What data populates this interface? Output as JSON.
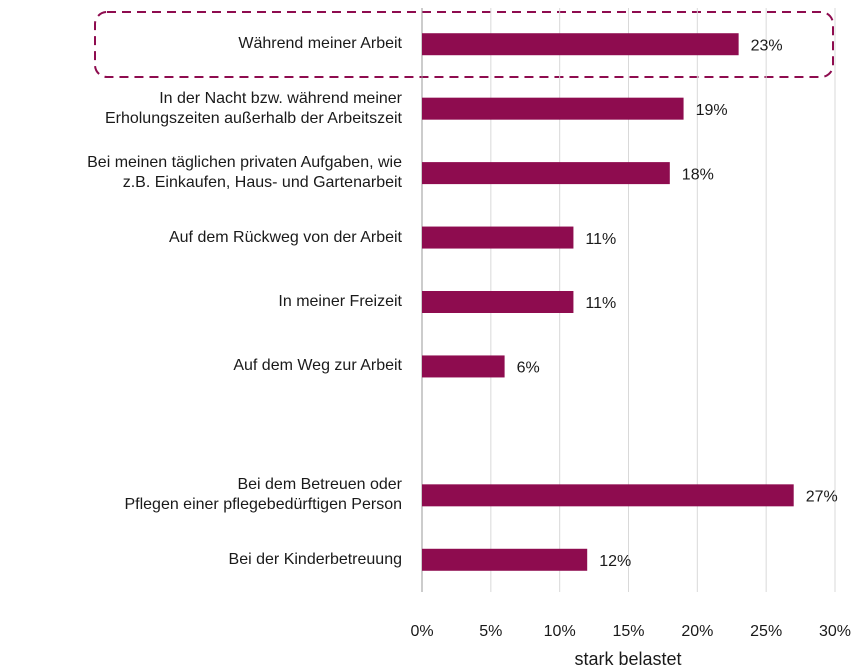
{
  "chart_data": {
    "type": "bar",
    "orientation": "horizontal",
    "categories": [
      "Während meiner Arbeit",
      "In der Nacht bzw. während meiner\nErholungszeiten außerhalb der Arbeitszeit",
      "Bei meinen täglichen privaten Aufgaben, wie\nz.B. Einkaufen, Haus- und Gartenarbeit",
      "Auf dem Rückweg von der Arbeit",
      "In meiner Freizeit",
      "Auf dem Weg zur Arbeit",
      null,
      "Bei dem Betreuen oder\nPflegen einer pflegebedürftigen Person",
      "Bei der Kinderbetreuung"
    ],
    "values": [
      23,
      19,
      18,
      11,
      11,
      6,
      null,
      27,
      12
    ],
    "value_labels": [
      "23%",
      "19%",
      "18%",
      "11%",
      "11%",
      "6%",
      null,
      "27%",
      "12%"
    ],
    "color": "#8e0c4f",
    "xlabel": "stark belastet",
    "xlim": [
      0,
      30
    ],
    "xticks": [
      {
        "value": 0,
        "label": "0%"
      },
      {
        "value": 5,
        "label": "5%"
      },
      {
        "value": 10,
        "label": "10%"
      },
      {
        "value": 15,
        "label": "15%"
      },
      {
        "value": 20,
        "label": "20%"
      },
      {
        "value": 25,
        "label": "25%"
      },
      {
        "value": 30,
        "label": "30%"
      }
    ],
    "grid": true
  }
}
